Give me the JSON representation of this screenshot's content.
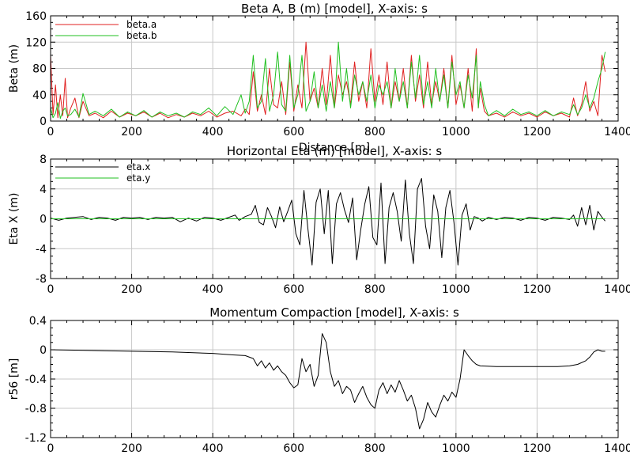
{
  "chart_data": [
    {
      "type": "line",
      "title": "Beta A, B (m) [model],  X-axis: s",
      "xlabel": "Distance [m]",
      "ylabel": "Beta (m)",
      "xlim": [
        0,
        1400
      ],
      "ylim": [
        0,
        160
      ],
      "xticks": [
        "0",
        "200",
        "400",
        "600",
        "800",
        "1000",
        "1200",
        "1400"
      ],
      "yticks": [
        "0",
        "40",
        "80",
        "120",
        "160"
      ],
      "grid": true,
      "legend": "top-left",
      "series": [
        {
          "name": "beta.a",
          "color": "#e02020",
          "x": [
            0,
            6,
            12,
            18,
            24,
            30,
            36,
            42,
            50,
            60,
            70,
            80,
            95,
            110,
            130,
            150,
            170,
            190,
            210,
            230,
            250,
            270,
            290,
            310,
            330,
            350,
            370,
            390,
            410,
            430,
            450,
            470,
            480,
            490,
            500,
            510,
            520,
            530,
            540,
            550,
            560,
            570,
            580,
            590,
            600,
            610,
            620,
            630,
            640,
            650,
            660,
            670,
            680,
            690,
            700,
            710,
            720,
            730,
            740,
            750,
            760,
            770,
            780,
            790,
            800,
            810,
            820,
            830,
            840,
            850,
            860,
            870,
            880,
            890,
            900,
            910,
            920,
            930,
            940,
            950,
            960,
            970,
            980,
            990,
            1000,
            1010,
            1020,
            1030,
            1040,
            1050,
            1055,
            1060,
            1070,
            1080,
            1100,
            1120,
            1140,
            1160,
            1180,
            1200,
            1220,
            1240,
            1260,
            1280,
            1290,
            1300,
            1310,
            1320,
            1330,
            1340,
            1350,
            1360,
            1368
          ],
          "values": [
            100,
            10,
            55,
            5,
            40,
            8,
            65,
            5,
            20,
            35,
            5,
            30,
            8,
            12,
            5,
            15,
            6,
            12,
            8,
            14,
            6,
            12,
            5,
            10,
            6,
            12,
            8,
            15,
            6,
            12,
            15,
            8,
            18,
            10,
            75,
            15,
            40,
            10,
            80,
            25,
            20,
            60,
            10,
            90,
            15,
            55,
            20,
            120,
            30,
            50,
            20,
            80,
            25,
            100,
            20,
            70,
            40,
            60,
            25,
            90,
            30,
            60,
            20,
            110,
            30,
            70,
            25,
            90,
            20,
            60,
            30,
            80,
            20,
            100,
            30,
            70,
            20,
            90,
            25,
            60,
            30,
            80,
            20,
            100,
            25,
            55,
            20,
            80,
            15,
            110,
            20,
            50,
            15,
            8,
            12,
            6,
            14,
            8,
            12,
            6,
            14,
            8,
            12,
            6,
            35,
            8,
            25,
            60,
            15,
            30,
            8,
            100,
            75
          ]
        },
        {
          "name": "beta.b",
          "color": "#20c020",
          "x": [
            0,
            6,
            12,
            18,
            24,
            30,
            36,
            42,
            50,
            60,
            70,
            80,
            95,
            110,
            130,
            150,
            170,
            190,
            210,
            230,
            250,
            270,
            290,
            310,
            330,
            350,
            370,
            390,
            410,
            430,
            450,
            470,
            480,
            490,
            500,
            510,
            520,
            530,
            540,
            550,
            560,
            570,
            580,
            590,
            600,
            610,
            620,
            630,
            640,
            650,
            660,
            670,
            680,
            690,
            700,
            710,
            720,
            730,
            740,
            750,
            760,
            770,
            780,
            790,
            800,
            810,
            820,
            830,
            840,
            850,
            860,
            870,
            880,
            890,
            900,
            910,
            920,
            930,
            940,
            950,
            960,
            970,
            980,
            990,
            1000,
            1010,
            1020,
            1030,
            1040,
            1050,
            1055,
            1060,
            1070,
            1080,
            1100,
            1120,
            1140,
            1160,
            1180,
            1200,
            1220,
            1240,
            1260,
            1280,
            1290,
            1300,
            1310,
            1320,
            1330,
            1340,
            1350,
            1360,
            1368
          ],
          "values": [
            20,
            5,
            12,
            28,
            4,
            15,
            20,
            8,
            10,
            18,
            6,
            42,
            10,
            15,
            8,
            18,
            6,
            14,
            8,
            16,
            6,
            14,
            8,
            12,
            6,
            14,
            10,
            20,
            8,
            22,
            10,
            40,
            12,
            30,
            100,
            20,
            30,
            95,
            15,
            40,
            105,
            25,
            15,
            100,
            20,
            40,
            100,
            15,
            30,
            75,
            20,
            55,
            15,
            60,
            20,
            120,
            30,
            80,
            20,
            70,
            40,
            60,
            30,
            70,
            20,
            55,
            40,
            60,
            20,
            80,
            30,
            60,
            20,
            90,
            35,
            100,
            25,
            60,
            20,
            80,
            30,
            70,
            20,
            90,
            40,
            60,
            20,
            70,
            35,
            100,
            20,
            60,
            25,
            8,
            16,
            8,
            18,
            10,
            14,
            8,
            16,
            8,
            14,
            10,
            25,
            10,
            20,
            40,
            20,
            35,
            60,
            80,
            105
          ]
        }
      ]
    },
    {
      "type": "line",
      "title": "Horizontal Eta (m) [model],  X-axis: s",
      "xlabel": "",
      "ylabel": "Eta X (m)",
      "xlim": [
        0,
        1400
      ],
      "ylim": [
        -8,
        8
      ],
      "xticks": [
        "0",
        "200",
        "400",
        "600",
        "800",
        "1000",
        "1200",
        "1400"
      ],
      "yticks": [
        "-8",
        "-4",
        "0",
        "4",
        "8"
      ],
      "grid": true,
      "legend": "top-left",
      "series": [
        {
          "name": "eta.x",
          "color": "#000000",
          "x": [
            0,
            20,
            40,
            60,
            80,
            100,
            120,
            140,
            160,
            180,
            200,
            220,
            240,
            260,
            280,
            300,
            320,
            340,
            360,
            380,
            400,
            420,
            440,
            455,
            465,
            480,
            495,
            505,
            515,
            525,
            535,
            545,
            555,
            565,
            575,
            585,
            595,
            605,
            615,
            625,
            635,
            645,
            655,
            665,
            675,
            685,
            695,
            705,
            715,
            725,
            735,
            745,
            755,
            765,
            775,
            785,
            795,
            805,
            815,
            825,
            835,
            845,
            855,
            865,
            875,
            885,
            895,
            905,
            915,
            925,
            935,
            945,
            955,
            965,
            975,
            985,
            995,
            1005,
            1015,
            1025,
            1035,
            1045,
            1055,
            1065,
            1080,
            1100,
            1120,
            1140,
            1160,
            1180,
            1200,
            1220,
            1240,
            1260,
            1280,
            1290,
            1300,
            1310,
            1320,
            1330,
            1340,
            1350,
            1360,
            1368
          ],
          "values": [
            0.1,
            -0.2,
            0.1,
            0.2,
            0.3,
            -0.1,
            0.2,
            0.1,
            -0.2,
            0.2,
            0.1,
            0.2,
            -0.1,
            0.2,
            0.1,
            0.2,
            -0.4,
            0.1,
            -0.3,
            0.2,
            0.1,
            -0.2,
            0.2,
            0.5,
            -0.2,
            0.3,
            0.6,
            1.8,
            -0.5,
            -0.8,
            1.5,
            0.3,
            -1.2,
            1.6,
            -0.4,
            1.0,
            2.5,
            -2.0,
            -3.5,
            3.8,
            -1.5,
            -6.2,
            2.2,
            4.0,
            -2.0,
            3.8,
            -6.0,
            2.0,
            3.5,
            1.2,
            -0.5,
            2.8,
            -5.5,
            -1.5,
            2.0,
            4.3,
            -2.5,
            -3.5,
            4.8,
            -6.0,
            1.5,
            3.5,
            1.0,
            -3.0,
            5.2,
            -2.0,
            -6.0,
            4.0,
            5.4,
            -1.0,
            -4.0,
            3.2,
            1.0,
            -5.2,
            1.5,
            3.8,
            -0.5,
            -6.2,
            0.5,
            2.0,
            -1.5,
            0.3,
            0.1,
            -0.3,
            0.2,
            -0.1,
            0.2,
            0.1,
            -0.2,
            0.2,
            0.1,
            -0.2,
            0.2,
            0.1,
            -0.1,
            0.5,
            -1.0,
            1.5,
            -0.8,
            1.8,
            -1.5,
            1.0,
            0.2,
            -0.3
          ]
        },
        {
          "name": "eta.y",
          "color": "#20c020",
          "x": [
            0,
            1368
          ],
          "values": [
            0,
            0
          ]
        }
      ]
    },
    {
      "type": "line",
      "title": "Momentum Compaction [model],  X-axis: s",
      "xlabel": "",
      "ylabel": "r56 [m]",
      "xlim": [
        0,
        1400
      ],
      "ylim": [
        -1.2,
        0.4
      ],
      "xticks": [
        "0",
        "200",
        "400",
        "600",
        "800",
        "1000",
        "1200",
        "1400"
      ],
      "yticks": [
        "-1.2",
        "-0.8",
        "-0.4",
        "0",
        "0.4"
      ],
      "grid": true,
      "series": [
        {
          "name": "",
          "color": "#000000",
          "x": [
            0,
            100,
            200,
            300,
            400,
            450,
            480,
            500,
            510,
            520,
            530,
            540,
            550,
            560,
            570,
            580,
            590,
            600,
            610,
            620,
            630,
            640,
            650,
            660,
            670,
            680,
            690,
            700,
            710,
            720,
            730,
            740,
            750,
            760,
            770,
            780,
            790,
            800,
            810,
            820,
            830,
            840,
            850,
            860,
            870,
            880,
            890,
            900,
            910,
            920,
            930,
            940,
            950,
            960,
            970,
            980,
            990,
            1000,
            1010,
            1020,
            1030,
            1040,
            1050,
            1060,
            1100,
            1150,
            1200,
            1250,
            1280,
            1300,
            1320,
            1330,
            1340,
            1350,
            1360,
            1368
          ],
          "values": [
            0,
            -0.01,
            -0.02,
            -0.03,
            -0.05,
            -0.07,
            -0.08,
            -0.12,
            -0.22,
            -0.15,
            -0.25,
            -0.18,
            -0.28,
            -0.22,
            -0.3,
            -0.35,
            -0.45,
            -0.52,
            -0.48,
            -0.12,
            -0.3,
            -0.2,
            -0.5,
            -0.35,
            0.22,
            0.1,
            -0.3,
            -0.5,
            -0.42,
            -0.6,
            -0.5,
            -0.55,
            -0.72,
            -0.6,
            -0.5,
            -0.65,
            -0.75,
            -0.8,
            -0.55,
            -0.45,
            -0.6,
            -0.48,
            -0.58,
            -0.42,
            -0.55,
            -0.7,
            -0.62,
            -0.8,
            -1.08,
            -0.95,
            -0.72,
            -0.85,
            -0.92,
            -0.76,
            -0.62,
            -0.7,
            -0.58,
            -0.65,
            -0.4,
            0,
            -0.08,
            -0.15,
            -0.2,
            -0.22,
            -0.23,
            -0.23,
            -0.23,
            -0.23,
            -0.22,
            -0.2,
            -0.15,
            -0.1,
            -0.03,
            0.0,
            -0.02,
            -0.02
          ]
        }
      ]
    }
  ]
}
